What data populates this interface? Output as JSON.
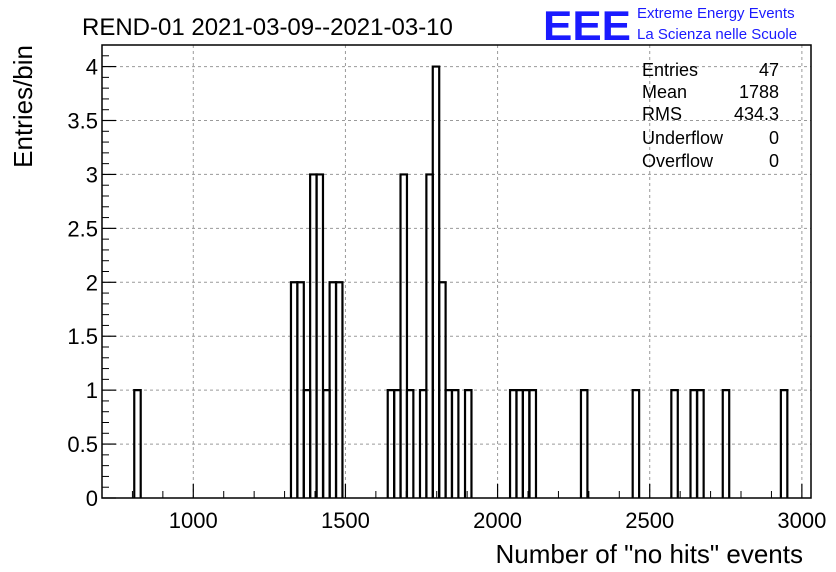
{
  "chart_data": {
    "type": "bar",
    "title": "REND-01 2021-03-09--2021-03-10",
    "xlabel": "Number of \"no hits\" events",
    "ylabel": "Entries/bin",
    "xlim": [
      700,
      3030
    ],
    "ylim": [
      0,
      4.2
    ],
    "bin_width": 21.2,
    "x_ticks": [
      "1000",
      "1500",
      "2000",
      "2500",
      "3000"
    ],
    "y_ticks": [
      "0",
      "0.5",
      "1",
      "1.5",
      "2",
      "2.5",
      "3",
      "3.5",
      "4"
    ],
    "grid": true,
    "bins": [
      {
        "x": 806,
        "count": 1
      },
      {
        "x": 1321,
        "count": 2
      },
      {
        "x": 1342,
        "count": 2
      },
      {
        "x": 1363,
        "count": 1
      },
      {
        "x": 1384,
        "count": 3
      },
      {
        "x": 1405,
        "count": 3
      },
      {
        "x": 1427,
        "count": 1
      },
      {
        "x": 1448,
        "count": 2
      },
      {
        "x": 1469,
        "count": 2
      },
      {
        "x": 1639,
        "count": 1
      },
      {
        "x": 1660,
        "count": 1
      },
      {
        "x": 1681,
        "count": 3
      },
      {
        "x": 1702,
        "count": 1
      },
      {
        "x": 1745,
        "count": 1
      },
      {
        "x": 1766,
        "count": 3
      },
      {
        "x": 1787,
        "count": 4
      },
      {
        "x": 1808,
        "count": 2
      },
      {
        "x": 1829,
        "count": 1
      },
      {
        "x": 1850,
        "count": 1
      },
      {
        "x": 1893,
        "count": 1
      },
      {
        "x": 2041,
        "count": 1
      },
      {
        "x": 2062,
        "count": 1
      },
      {
        "x": 2083,
        "count": 1
      },
      {
        "x": 2105,
        "count": 1
      },
      {
        "x": 2274,
        "count": 1
      },
      {
        "x": 2444,
        "count": 1
      },
      {
        "x": 2571,
        "count": 1
      },
      {
        "x": 2634,
        "count": 1
      },
      {
        "x": 2656,
        "count": 1
      },
      {
        "x": 2740,
        "count": 1
      },
      {
        "x": 2931,
        "count": 1
      }
    ],
    "stats": [
      {
        "label": "Entries",
        "value": "47"
      },
      {
        "label": "Mean",
        "value": "1788"
      },
      {
        "label": "RMS",
        "value": "434.3"
      },
      {
        "label": "Underflow",
        "value": "0"
      },
      {
        "label": "Overflow",
        "value": "0"
      }
    ],
    "colors": {
      "logo": "#1a1aff",
      "line": "#000000",
      "grid": "#9a9a9a"
    }
  },
  "logo": {
    "mark": "EEE",
    "line1": "Extreme Energy Events",
    "line2": "La Scienza nelle Scuole"
  }
}
